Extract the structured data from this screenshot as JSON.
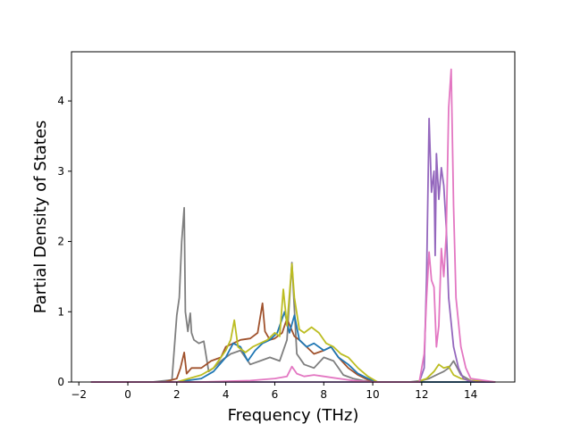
{
  "chart_data": {
    "type": "line",
    "title": "",
    "xlabel": "Frequency (THz)",
    "ylabel": "Partial Density of States",
    "xlim": [
      -2.3,
      15.8
    ],
    "ylim": [
      0,
      4.7
    ],
    "xticks": [
      -2,
      0,
      2,
      4,
      6,
      8,
      10,
      12,
      14
    ],
    "yticks": [
      0,
      1,
      2,
      3,
      4
    ],
    "grid": false,
    "legend": "none",
    "series": [
      {
        "color": "#7f7f7f",
        "x": [
          -1.5,
          1.0,
          1.8,
          2.0,
          2.1,
          2.2,
          2.3,
          2.35,
          2.45,
          2.55,
          2.6,
          2.7,
          2.9,
          3.1,
          3.3,
          3.5,
          3.8,
          4.2,
          4.6,
          5.0,
          5.4,
          5.8,
          6.2,
          6.5,
          6.7,
          6.9,
          7.2,
          7.6,
          8.0,
          8.4,
          8.8,
          9.2,
          9.6,
          10.0,
          11.5,
          12.0,
          12.3,
          12.6,
          12.9,
          13.1,
          13.3,
          13.6,
          14.0,
          15.0
        ],
        "y": [
          0,
          0,
          0.03,
          0.95,
          1.2,
          2.0,
          2.48,
          1.0,
          0.72,
          0.98,
          0.7,
          0.6,
          0.55,
          0.58,
          0.15,
          0.2,
          0.3,
          0.4,
          0.45,
          0.25,
          0.3,
          0.35,
          0.3,
          0.6,
          1.7,
          0.4,
          0.25,
          0.2,
          0.35,
          0.3,
          0.1,
          0.05,
          0.02,
          0,
          0,
          0.02,
          0.05,
          0.1,
          0.15,
          0.2,
          0.3,
          0.1,
          0.02,
          0
        ]
      },
      {
        "color": "#a0522d",
        "x": [
          -1.5,
          1.5,
          2.0,
          2.15,
          2.3,
          2.4,
          2.6,
          3.0,
          3.4,
          3.8,
          4.0,
          4.3,
          4.6,
          5.0,
          5.3,
          5.5,
          5.6,
          5.8,
          6.0,
          6.3,
          6.5,
          6.8,
          7.0,
          7.3,
          7.6,
          8.0,
          8.3,
          8.6,
          9.0,
          9.4,
          9.8,
          10.2,
          15.0
        ],
        "y": [
          0,
          0,
          0.05,
          0.2,
          0.42,
          0.12,
          0.2,
          0.2,
          0.3,
          0.35,
          0.5,
          0.55,
          0.6,
          0.62,
          0.7,
          1.12,
          0.72,
          0.6,
          0.62,
          0.7,
          0.9,
          0.65,
          0.6,
          0.5,
          0.4,
          0.45,
          0.5,
          0.35,
          0.2,
          0.1,
          0.03,
          0,
          0
        ]
      },
      {
        "color": "#1f77b4",
        "x": [
          -1.5,
          2.0,
          3.0,
          3.5,
          4.0,
          4.3,
          4.6,
          4.9,
          5.2,
          5.5,
          5.8,
          6.1,
          6.4,
          6.6,
          6.8,
          7.0,
          7.3,
          7.6,
          8.0,
          8.3,
          8.6,
          9.0,
          9.4,
          9.8,
          10.2,
          15.0
        ],
        "y": [
          0,
          0,
          0.05,
          0.15,
          0.35,
          0.55,
          0.5,
          0.3,
          0.45,
          0.55,
          0.6,
          0.7,
          1.0,
          0.7,
          0.95,
          0.6,
          0.5,
          0.55,
          0.45,
          0.5,
          0.35,
          0.25,
          0.12,
          0.05,
          0,
          0
        ]
      },
      {
        "color": "#bcbd22",
        "x": [
          -1.5,
          2.0,
          3.0,
          3.5,
          4.0,
          4.2,
          4.35,
          4.5,
          4.8,
          5.1,
          5.4,
          5.7,
          6.0,
          6.2,
          6.35,
          6.5,
          6.7,
          6.8,
          7.0,
          7.2,
          7.5,
          7.8,
          8.1,
          8.4,
          8.7,
          9.0,
          9.4,
          9.8,
          10.2,
          11.8,
          12.2,
          12.5,
          12.7,
          12.9,
          13.1,
          13.3,
          13.6,
          14.0,
          15.0
        ],
        "y": [
          0,
          0,
          0.1,
          0.2,
          0.45,
          0.6,
          0.88,
          0.5,
          0.42,
          0.5,
          0.55,
          0.6,
          0.7,
          0.65,
          1.32,
          0.8,
          1.68,
          1.2,
          0.75,
          0.7,
          0.78,
          0.7,
          0.55,
          0.5,
          0.4,
          0.35,
          0.2,
          0.08,
          0,
          0,
          0.05,
          0.15,
          0.25,
          0.2,
          0.22,
          0.1,
          0.05,
          0.02,
          0
        ]
      },
      {
        "color": "#9467bd",
        "x": [
          -1.5,
          11.9,
          12.1,
          12.2,
          12.3,
          12.4,
          12.5,
          12.55,
          12.6,
          12.7,
          12.8,
          12.9,
          13.0,
          13.1,
          13.3,
          13.5,
          13.7,
          13.9,
          14.2,
          15.0
        ],
        "y": [
          0,
          0,
          0.2,
          1.5,
          3.75,
          2.7,
          3.0,
          1.8,
          3.25,
          2.6,
          3.05,
          2.8,
          2.2,
          1.2,
          0.5,
          0.2,
          0.05,
          0.02,
          0,
          0
        ]
      },
      {
        "color": "#e377c2",
        "x": [
          -1.5,
          3.0,
          5.0,
          6.0,
          6.5,
          6.7,
          6.9,
          7.2,
          7.6,
          8.0,
          8.4,
          8.8,
          9.2,
          9.6,
          10.0,
          11.9,
          12.1,
          12.2,
          12.3,
          12.4,
          12.5,
          12.6,
          12.7,
          12.8,
          12.9,
          13.0,
          13.1,
          13.2,
          13.3,
          13.4,
          13.6,
          13.8,
          14.0,
          15.0
        ],
        "y": [
          0,
          0,
          0.02,
          0.05,
          0.08,
          0.22,
          0.12,
          0.08,
          0.1,
          0.08,
          0.06,
          0.04,
          0.02,
          0.01,
          0,
          0,
          0.4,
          1.2,
          1.85,
          1.45,
          1.35,
          0.5,
          0.8,
          1.9,
          1.5,
          2.1,
          3.9,
          4.45,
          2.5,
          1.2,
          0.5,
          0.2,
          0.05,
          0
        ]
      }
    ]
  }
}
